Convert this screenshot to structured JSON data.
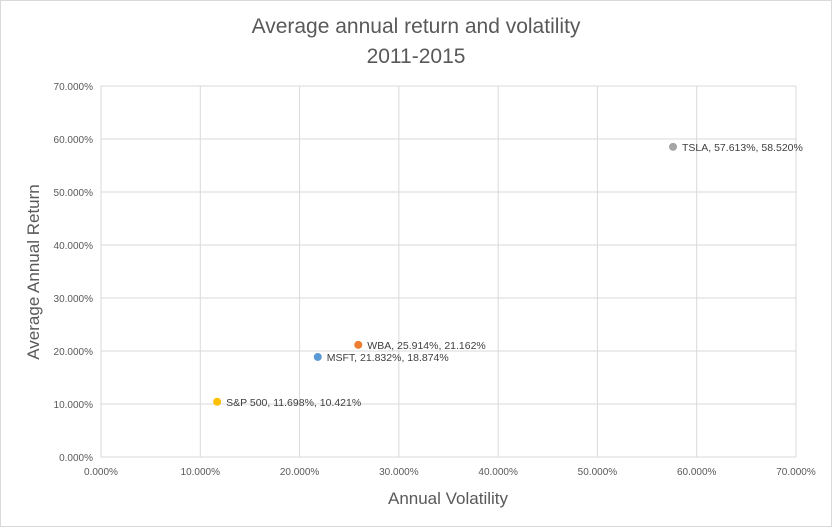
{
  "chart_data": {
    "type": "scatter",
    "title": "Average annual return and volatility",
    "subtitle": "2011-2015",
    "xlabel": "Annual Volatility",
    "ylabel": "Average Annual Return",
    "xlim": [
      0,
      70
    ],
    "ylim": [
      0,
      70
    ],
    "x_ticks": [
      "0.000%",
      "10.000%",
      "20.000%",
      "30.000%",
      "40.000%",
      "50.000%",
      "60.000%",
      "70.000%"
    ],
    "y_ticks": [
      "0.000%",
      "10.000%",
      "20.000%",
      "30.000%",
      "40.000%",
      "50.000%",
      "60.000%",
      "70.000%"
    ],
    "grid": true,
    "points": [
      {
        "label": "S&P 500, 11.698%, 10.421%",
        "x": 11.698,
        "y": 10.421,
        "color": "#ffc000"
      },
      {
        "label": "MSFT, 21.832%, 18.874%",
        "x": 21.832,
        "y": 18.874,
        "color": "#5b9bd5"
      },
      {
        "label": "WBA, 25.914%, 21.162%",
        "x": 25.914,
        "y": 21.162,
        "color": "#ed7d31"
      },
      {
        "label": "TSLA, 57.613%, 58.520%",
        "x": 57.613,
        "y": 58.52,
        "color": "#a5a5a5"
      }
    ]
  }
}
